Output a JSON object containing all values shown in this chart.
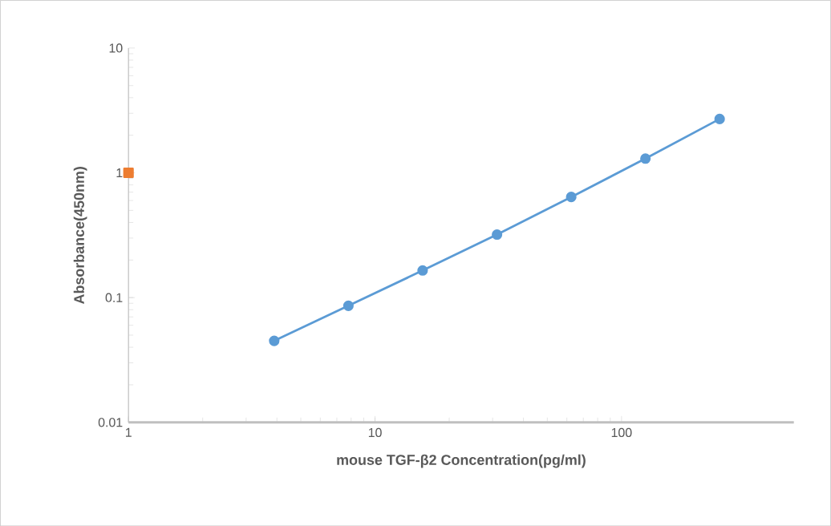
{
  "chart_data": {
    "type": "line",
    "xlabel": "mouse TGF-β2 Concentration(pg/ml)",
    "ylabel": "Absorbance(450nm)",
    "log": "xy",
    "xlim": [
      1,
      500
    ],
    "xticks": [
      1,
      10,
      100
    ],
    "ylim": [
      0.01,
      10
    ],
    "yticks": [
      0.01,
      0.1,
      1,
      10
    ],
    "marker": "circle",
    "line_style": "solid",
    "series": [
      {
        "color": "#5b9bd5",
        "x": [
          3.9,
          7.8,
          15.6,
          31.25,
          62.5,
          125,
          250
        ],
        "values": [
          0.045,
          0.086,
          0.165,
          0.32,
          0.64,
          1.3,
          2.7
        ]
      },
      {
        "type": "scatter",
        "marker": "square",
        "color": "#ed7d31",
        "x": [
          1
        ],
        "values": [
          1
        ]
      }
    ]
  }
}
